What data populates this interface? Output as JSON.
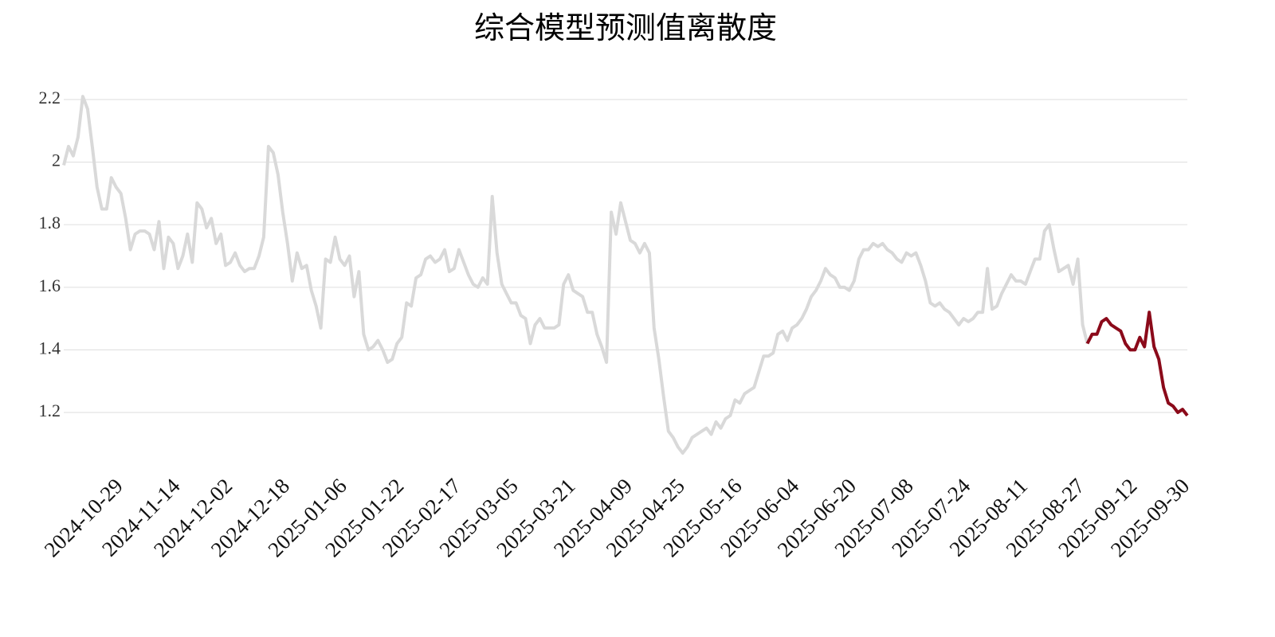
{
  "chart_data": {
    "type": "line",
    "title": "综合模型预测值离散度",
    "categories": [
      null,
      null,
      null,
      null,
      null,
      null,
      null,
      null,
      null,
      null,
      null,
      null,
      "2024-10-29",
      null,
      null,
      null,
      null,
      null,
      null,
      null,
      null,
      null,
      null,
      null,
      "2024-11-14",
      null,
      null,
      null,
      null,
      null,
      null,
      null,
      null,
      null,
      null,
      "2024-12-02",
      null,
      null,
      null,
      null,
      null,
      null,
      null,
      null,
      null,
      null,
      null,
      "2024-12-18",
      null,
      null,
      null,
      null,
      null,
      null,
      null,
      null,
      null,
      null,
      null,
      "2025-01-06",
      null,
      null,
      null,
      null,
      null,
      null,
      null,
      null,
      null,
      null,
      null,
      "2025-01-22",
      null,
      null,
      null,
      null,
      null,
      null,
      null,
      null,
      null,
      null,
      null,
      "2025-02-17",
      null,
      null,
      null,
      null,
      null,
      null,
      null,
      null,
      null,
      null,
      null,
      "2025-03-05",
      null,
      null,
      null,
      null,
      null,
      null,
      null,
      null,
      null,
      null,
      null,
      "2025-03-21",
      null,
      null,
      null,
      null,
      null,
      null,
      null,
      null,
      null,
      null,
      null,
      "2025-04-09",
      null,
      null,
      null,
      null,
      null,
      null,
      null,
      null,
      null,
      null,
      "2025-04-25",
      null,
      null,
      null,
      null,
      null,
      null,
      null,
      null,
      null,
      null,
      null,
      "2025-05-16",
      null,
      null,
      null,
      null,
      null,
      null,
      null,
      null,
      null,
      null,
      null,
      "2025-06-04",
      null,
      null,
      null,
      null,
      null,
      null,
      null,
      null,
      null,
      null,
      null,
      "2025-06-20",
      null,
      null,
      null,
      null,
      null,
      null,
      null,
      null,
      null,
      null,
      null,
      "2025-07-08",
      null,
      null,
      null,
      null,
      null,
      null,
      null,
      null,
      null,
      null,
      null,
      "2025-07-24",
      null,
      null,
      null,
      null,
      null,
      null,
      null,
      null,
      null,
      null,
      null,
      "2025-08-11",
      null,
      null,
      null,
      null,
      null,
      null,
      null,
      null,
      null,
      null,
      null,
      "2025-08-27",
      null,
      null,
      null,
      null,
      null,
      null,
      null,
      null,
      null,
      null,
      "2025-09-12",
      null,
      null,
      null,
      null,
      null,
      null,
      null,
      null,
      null,
      null,
      "2025-09-30"
    ],
    "series": [
      {
        "color": "#d9d9d9",
        "values": [
          1.99,
          2.05,
          2.02,
          2.08,
          2.21,
          2.17,
          2.05,
          1.92,
          1.85,
          1.85,
          1.95,
          1.92,
          1.9,
          1.82,
          1.72,
          1.77,
          1.78,
          1.78,
          1.77,
          1.72,
          1.81,
          1.66,
          1.76,
          1.74,
          1.66,
          1.7,
          1.77,
          1.68,
          1.87,
          1.85,
          1.79,
          1.82,
          1.74,
          1.77,
          1.67,
          1.68,
          1.71,
          1.67,
          1.65,
          1.66,
          1.66,
          1.7,
          1.76,
          2.05,
          2.03,
          1.96,
          1.84,
          1.74,
          1.62,
          1.71,
          1.66,
          1.67,
          1.59,
          1.54,
          1.47,
          1.69,
          1.68,
          1.76,
          1.69,
          1.67,
          1.7,
          1.57,
          1.65,
          1.45,
          1.4,
          1.41,
          1.43,
          1.4,
          1.36,
          1.37,
          1.42,
          1.44,
          1.55,
          1.54,
          1.63,
          1.64,
          1.69,
          1.7,
          1.68,
          1.69,
          1.72,
          1.65,
          1.66,
          1.72,
          1.68,
          1.64,
          1.61,
          1.6,
          1.63,
          1.61,
          1.89,
          1.71,
          1.61,
          1.58,
          1.55,
          1.55,
          1.51,
          1.5,
          1.42,
          1.48,
          1.5,
          1.47,
          1.47,
          1.47,
          1.48,
          1.61,
          1.64,
          1.59,
          1.58,
          1.57,
          1.52,
          1.52,
          1.45,
          1.41,
          1.36,
          1.84,
          1.77,
          1.87,
          1.81,
          1.75,
          1.74,
          1.71,
          1.74,
          1.71,
          1.47,
          1.37,
          1.25,
          1.14,
          1.12,
          1.09,
          1.07,
          1.09,
          1.12,
          1.13,
          1.14,
          1.15,
          1.13,
          1.17,
          1.15,
          1.18,
          1.19,
          1.24,
          1.23,
          1.26,
          1.27,
          1.28,
          1.33,
          1.38,
          1.38,
          1.39,
          1.45,
          1.46,
          1.43,
          1.47,
          1.48,
          1.5,
          1.53,
          1.57,
          1.59,
          1.62,
          1.66,
          1.64,
          1.63,
          1.6,
          1.6,
          1.59,
          1.62,
          1.69,
          1.72,
          1.72,
          1.74,
          1.73,
          1.74,
          1.72,
          1.71,
          1.69,
          1.68,
          1.71,
          1.7,
          1.71,
          1.67,
          1.62,
          1.55,
          1.54,
          1.55,
          1.53,
          1.52,
          1.5,
          1.48,
          1.5,
          1.49,
          1.5,
          1.52,
          1.52,
          1.66,
          1.53,
          1.54,
          1.58,
          1.61,
          1.64,
          1.62,
          1.62,
          1.61,
          1.65,
          1.69,
          1.69,
          1.78,
          1.8,
          1.72,
          1.65,
          1.66,
          1.67,
          1.61,
          1.69,
          1.48,
          1.42,
          null,
          null,
          null,
          null,
          null,
          null,
          null,
          null,
          null,
          null,
          null,
          null,
          null,
          null,
          null,
          null,
          null,
          null,
          null,
          null,
          null
        ]
      },
      {
        "color": "#8b0a1a",
        "values": [
          null,
          null,
          null,
          null,
          null,
          null,
          null,
          null,
          null,
          null,
          null,
          null,
          null,
          null,
          null,
          null,
          null,
          null,
          null,
          null,
          null,
          null,
          null,
          null,
          null,
          null,
          null,
          null,
          null,
          null,
          null,
          null,
          null,
          null,
          null,
          null,
          null,
          null,
          null,
          null,
          null,
          null,
          null,
          null,
          null,
          null,
          null,
          null,
          null,
          null,
          null,
          null,
          null,
          null,
          null,
          null,
          null,
          null,
          null,
          null,
          null,
          null,
          null,
          null,
          null,
          null,
          null,
          null,
          null,
          null,
          null,
          null,
          null,
          null,
          null,
          null,
          null,
          null,
          null,
          null,
          null,
          null,
          null,
          null,
          null,
          null,
          null,
          null,
          null,
          null,
          null,
          null,
          null,
          null,
          null,
          null,
          null,
          null,
          null,
          null,
          null,
          null,
          null,
          null,
          null,
          null,
          null,
          null,
          null,
          null,
          null,
          null,
          null,
          null,
          null,
          null,
          null,
          null,
          null,
          null,
          null,
          null,
          null,
          null,
          null,
          null,
          null,
          null,
          null,
          null,
          null,
          null,
          null,
          null,
          null,
          null,
          null,
          null,
          null,
          null,
          null,
          null,
          null,
          null,
          null,
          null,
          null,
          null,
          null,
          null,
          null,
          null,
          null,
          null,
          null,
          null,
          null,
          null,
          null,
          null,
          null,
          null,
          null,
          null,
          null,
          null,
          null,
          null,
          null,
          null,
          null,
          null,
          null,
          null,
          null,
          null,
          null,
          null,
          null,
          null,
          null,
          null,
          null,
          null,
          null,
          null,
          null,
          null,
          null,
          null,
          null,
          null,
          null,
          null,
          null,
          null,
          null,
          null,
          null,
          null,
          null,
          null,
          null,
          null,
          null,
          null,
          null,
          null,
          null,
          null,
          null,
          null,
          null,
          null,
          null,
          1.42,
          1.45,
          1.45,
          1.49,
          1.5,
          1.48,
          1.47,
          1.46,
          1.42,
          1.4,
          1.4,
          1.44,
          1.41,
          1.52,
          1.41,
          1.37,
          1.28,
          1.23,
          1.22,
          1.2,
          1.21,
          1.19
        ]
      }
    ],
    "ylim": [
      1.0,
      2.3
    ],
    "yticks": [
      1.2,
      1.4,
      1.6,
      1.8,
      2,
      2.2
    ],
    "grid": true
  }
}
